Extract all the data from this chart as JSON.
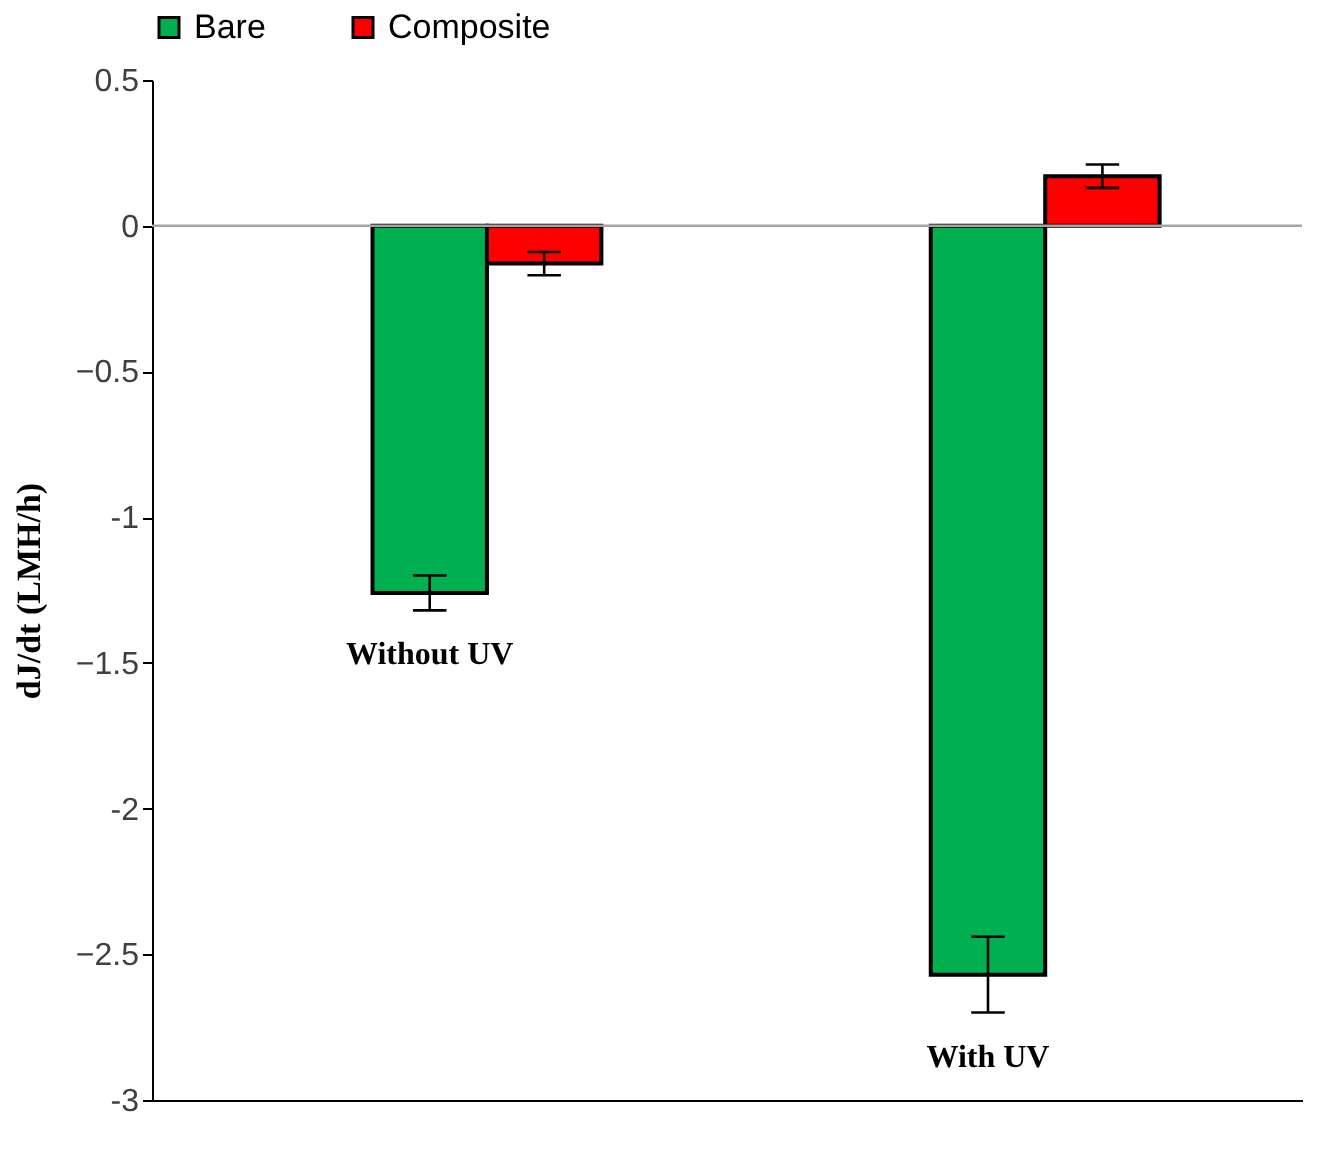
{
  "chart_data": {
    "type": "bar",
    "ylabel": "dJ/dt (LMH/h)",
    "categories": [
      "Without UV",
      "With UV"
    ],
    "series": [
      {
        "name": "Bare",
        "color": "#00b050",
        "values": [
          -1.26,
          -2.57
        ],
        "errors": [
          0.06,
          0.13
        ]
      },
      {
        "name": "Composite",
        "color": "#ff0000",
        "values": [
          -0.13,
          0.17
        ],
        "errors": [
          0.04,
          0.04
        ]
      }
    ],
    "ylim": [
      -3,
      0.5
    ],
    "yticks": [
      {
        "value": -3,
        "label": "-3"
      },
      -2.5,
      {
        "value": -2,
        "label": "-2"
      },
      -1.5,
      {
        "value": -1,
        "label": "-1"
      },
      -0.5,
      {
        "value": 0,
        "label": "0"
      },
      0.5
    ],
    "grid": false,
    "legend": "top",
    "ref_lines": [
      {
        "axis": "y",
        "value": 0,
        "color": "#a6a6a6"
      }
    ]
  }
}
